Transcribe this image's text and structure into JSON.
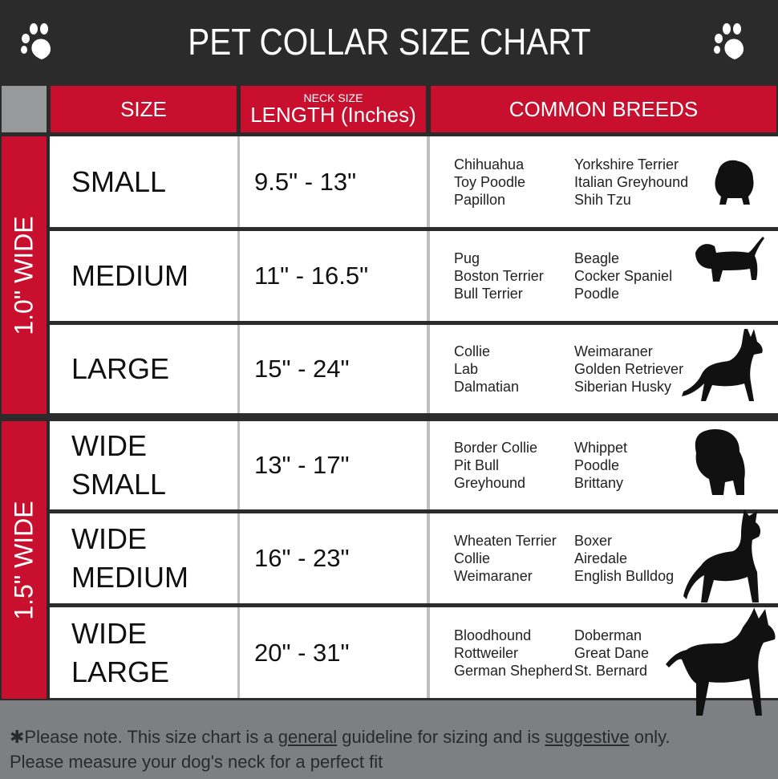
{
  "title": "PET COLLAR SIZE CHART",
  "headers": {
    "size": "SIZE",
    "neck_size": "NECK SIZE",
    "length": "LENGTH (Inches)",
    "breeds": "COMMON BREEDS"
  },
  "groups": [
    {
      "label": "1.0\" WIDE"
    },
    {
      "label": "1.5\" WIDE"
    }
  ],
  "rows": [
    {
      "size": [
        "SMALL"
      ],
      "length": "9.5\" - 13\"",
      "breeds1": [
        "Chihuahua",
        "Toy Poodle",
        "Papillon"
      ],
      "breeds2": [
        "Yorkshire Terrier",
        "Italian Greyhound",
        "Shih Tzu"
      ],
      "icon": "pomeranian-silhouette-icon"
    },
    {
      "size": [
        "MEDIUM"
      ],
      "length": "11\" - 16.5\"",
      "breeds1": [
        "Pug",
        "Boston Terrier",
        "Bull Terrier"
      ],
      "breeds2": [
        "Beagle",
        "Cocker Spaniel",
        "Poodle"
      ],
      "icon": "dachshund-silhouette-icon"
    },
    {
      "size": [
        "LARGE"
      ],
      "length": "15\" - 24\"",
      "breeds1": [
        "Collie",
        "Lab",
        "Dalmatian"
      ],
      "breeds2": [
        "Weimaraner",
        "Golden Retriever",
        "Siberian Husky"
      ],
      "icon": "shepherd-silhouette-icon"
    },
    {
      "size": [
        "WIDE",
        "SMALL"
      ],
      "length": "13\" - 17\"",
      "breeds1": [
        "Border Collie",
        "Pit Bull",
        "Greyhound"
      ],
      "breeds2": [
        "Whippet",
        "Poodle",
        "Brittany"
      ],
      "icon": "bulldog-silhouette-icon"
    },
    {
      "size": [
        "WIDE",
        "MEDIUM"
      ],
      "length": "16\" - 23\"",
      "breeds1": [
        "Wheaten Terrier",
        "Collie",
        "Weimaraner"
      ],
      "breeds2": [
        "Boxer",
        "Airedale",
        "English Bulldog"
      ],
      "icon": "pitbull-silhouette-icon"
    },
    {
      "size": [
        "WIDE",
        "LARGE"
      ],
      "length": "20\" - 31\"",
      "breeds1": [
        "Bloodhound",
        "Rottweiler",
        "German Shepherd"
      ],
      "breeds2": [
        "Doberman",
        "Great Dane",
        "St. Bernard"
      ],
      "icon": "doberman-silhouette-icon"
    }
  ],
  "footer": {
    "p1": "✱Please note. This size chart is a ",
    "w1": "general",
    "p2": " guideline for sizing and is ",
    "w2": "suggestive",
    "p3": " only.",
    "line2": "Please measure your dog's neck for a perfect fit"
  },
  "colors": {
    "red": "#c8102e",
    "dark": "#2b2b2b",
    "gray": "#7e7f83"
  }
}
